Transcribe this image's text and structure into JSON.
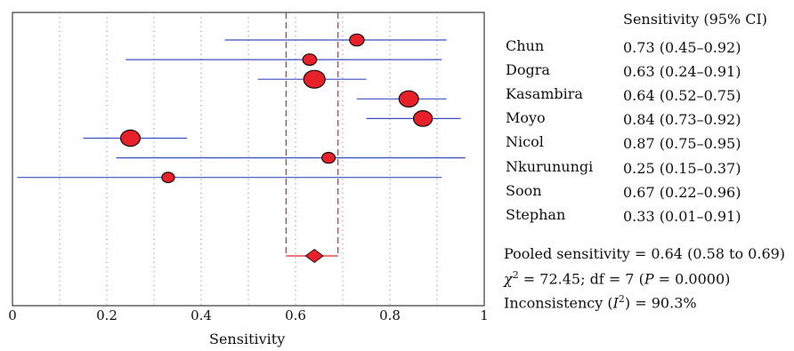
{
  "chart_data": {
    "type": "forest",
    "xlabel": "Sensitivity",
    "xlim": [
      0,
      1
    ],
    "xticks": [
      0,
      0.2,
      0.4,
      0.6,
      0.8,
      1
    ],
    "xtick_labels": [
      "0",
      "0.2",
      "0.4",
      "0.6",
      "0.8",
      "1"
    ],
    "grid": "vertical dotted at 0.1 intervals",
    "column_header": "Sensitivity (95% CI)",
    "studies": [
      {
        "name": "Chun",
        "ci_text": "0.73 (0.45–0.92)",
        "estimate": 0.73,
        "lower": 0.45,
        "upper": 0.92,
        "weight": 0.45
      },
      {
        "name": "Dogra",
        "ci_text": "0.63 (0.24–0.91)",
        "estimate": 0.63,
        "lower": 0.24,
        "upper": 0.91,
        "weight": 0.4
      },
      {
        "name": "Kasambira",
        "ci_text": "0.64 (0.52–0.75)",
        "estimate": 0.64,
        "lower": 0.52,
        "upper": 0.75,
        "weight": 1.0
      },
      {
        "name": "Moyo",
        "ci_text": "0.84 (0.73–0.92)",
        "estimate": 0.84,
        "lower": 0.73,
        "upper": 0.92,
        "weight": 0.85
      },
      {
        "name": "Nicol",
        "ci_text": "0.87 (0.75–0.95)",
        "estimate": 0.87,
        "lower": 0.75,
        "upper": 0.95,
        "weight": 0.8
      },
      {
        "name": "Nkurunungi",
        "ci_text": "0.25 (0.15–0.37)",
        "estimate": 0.25,
        "lower": 0.15,
        "upper": 0.37,
        "weight": 0.85
      },
      {
        "name": "Soon",
        "ci_text": "0.67 (0.22–0.96)",
        "estimate": 0.67,
        "lower": 0.22,
        "upper": 0.96,
        "weight": 0.35
      },
      {
        "name": "Stephan",
        "ci_text": "0.33 (0.01–0.91)",
        "estimate": 0.33,
        "lower": 0.01,
        "upper": 0.91,
        "weight": 0.3
      }
    ],
    "pooled": {
      "estimate": 0.64,
      "lower": 0.58,
      "upper": 0.69
    },
    "colors": {
      "marker": "#e8202a",
      "ci_line": "#3a4fc0",
      "pooled_line": "#e8202a",
      "grid": "#888888"
    }
  },
  "stats": {
    "pooled_text": "Pooled sensitivity = 0.64 (0.58 to 0.69)",
    "chi_prefix": "χ",
    "chi_sup": "2",
    "chi_mid": " = 72.45; df = 7 (",
    "chi_p": "P",
    "chi_end": " = 0.0000)",
    "incons_prefix": "Inconsistency (",
    "incons_i": "I",
    "incons_sup": "2",
    "incons_end": ") = 90.3%"
  }
}
